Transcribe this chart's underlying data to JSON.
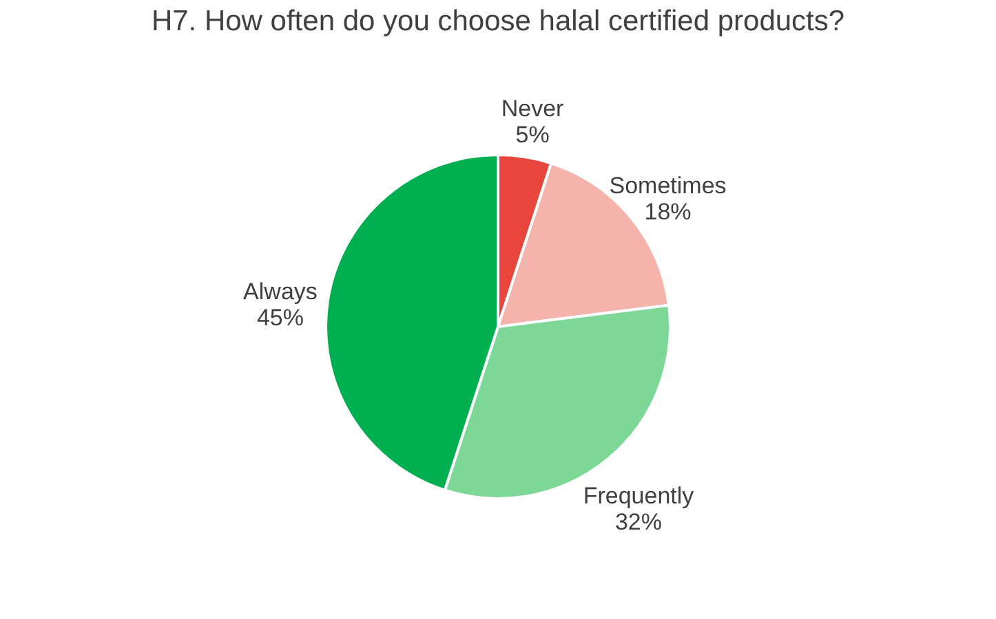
{
  "chart_data": {
    "type": "pie",
    "title": "H7. How often do you choose halal certified products?",
    "categories": [
      "Never",
      "Sometimes",
      "Frequently",
      "Always"
    ],
    "values": [
      5,
      18,
      32,
      45
    ],
    "value_labels": [
      "5%",
      "18%",
      "32%",
      "45%"
    ],
    "colors": [
      "#e8463c",
      "#f4b4ac",
      "#7dd897",
      "#00b050"
    ],
    "legend": false
  }
}
